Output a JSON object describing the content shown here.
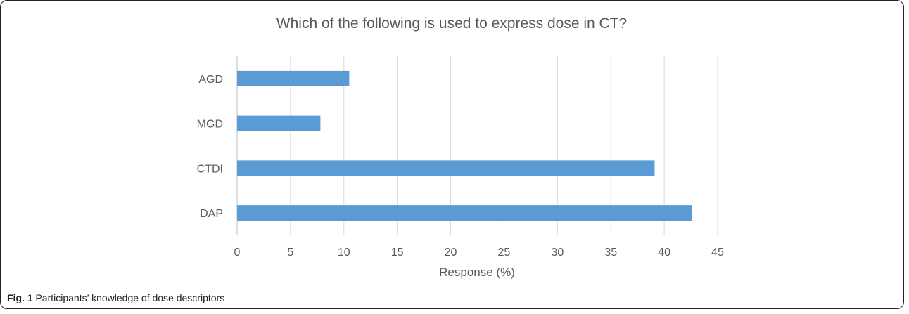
{
  "chart_data": {
    "type": "bar",
    "orientation": "horizontal",
    "title": "Which of the following is used to express dose in CT?",
    "xlabel": "Response (%)",
    "ylabel": "",
    "categories": [
      "AGD",
      "MGD",
      "CTDI",
      "DAP"
    ],
    "values": [
      10.5,
      7.8,
      39.1,
      42.6
    ],
    "xlim": [
      0,
      45
    ],
    "xticks": [
      0,
      5,
      10,
      15,
      20,
      25,
      30,
      35,
      40,
      45
    ],
    "grid": true,
    "legend": "none",
    "bar_color": "#5b9bd5",
    "grid_color": "#d9d9d9"
  },
  "caption": {
    "label": "Fig. 1",
    "text": "Participants’ knowledge of dose descriptors"
  }
}
